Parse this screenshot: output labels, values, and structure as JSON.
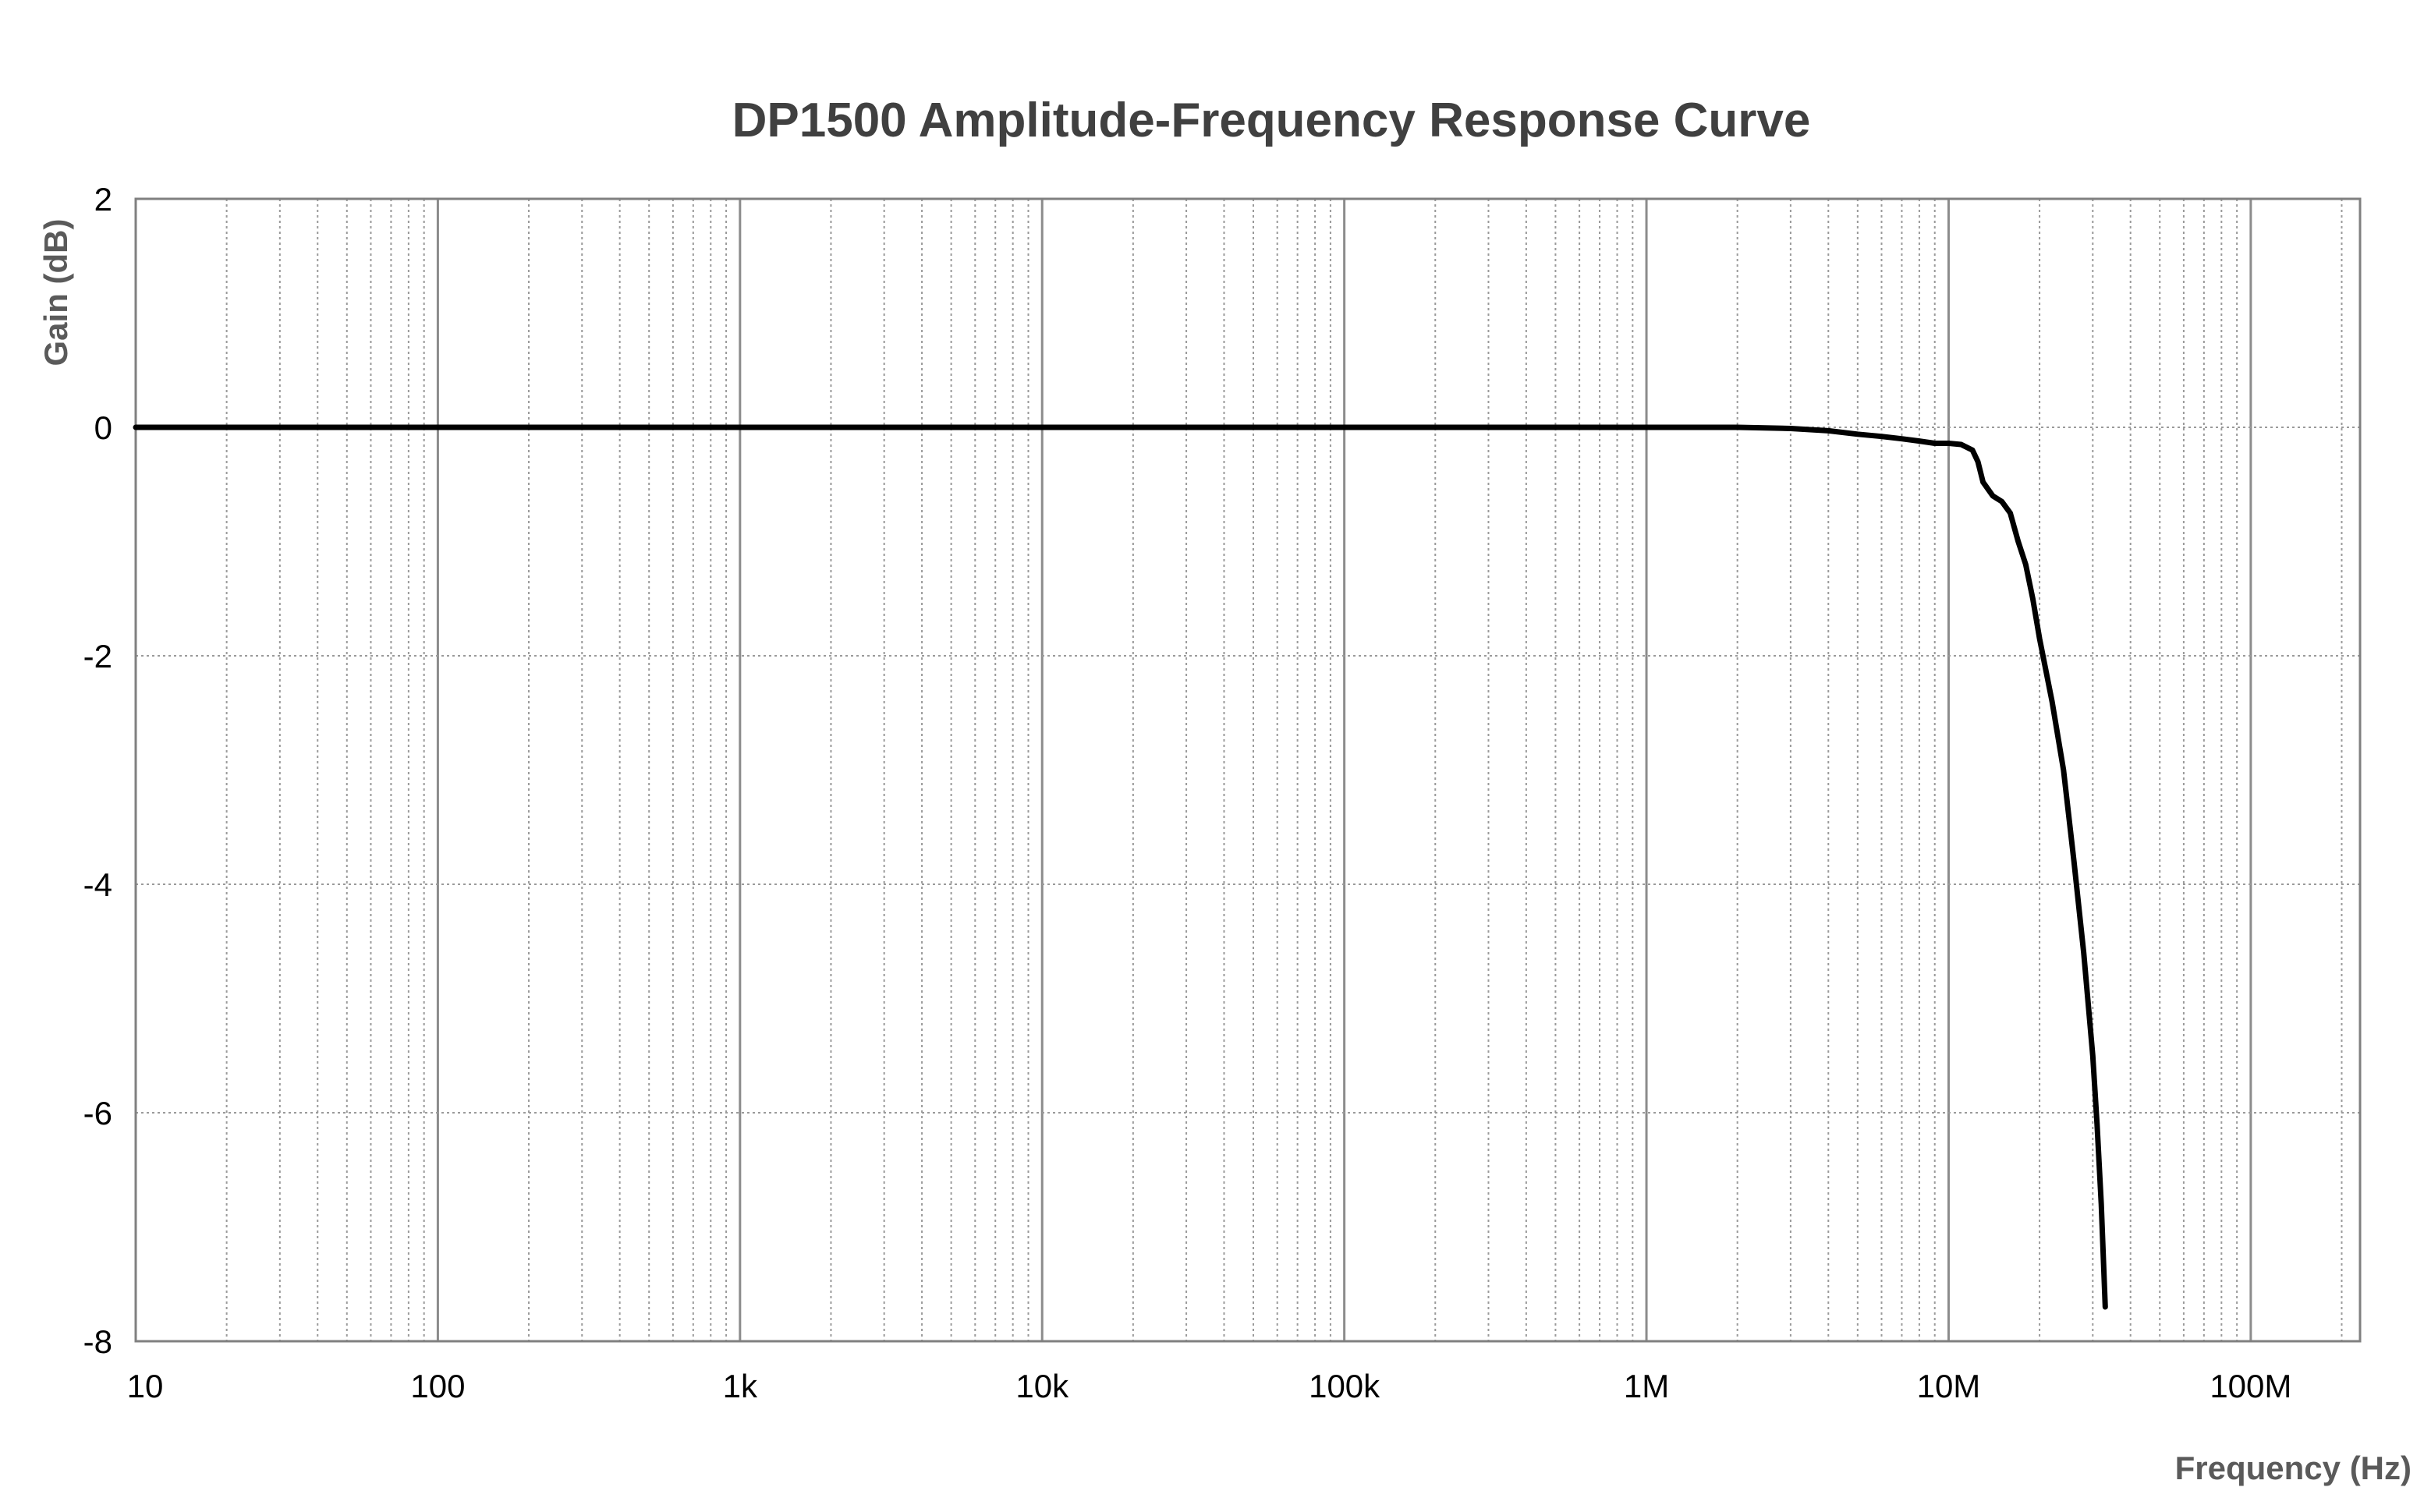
{
  "chart_data": {
    "type": "line",
    "title": "DP1500 Amplitude-Frequency Response Curve",
    "xlabel": "Frequency (Hz)",
    "ylabel": "Gain (dB)",
    "x_scale": "log",
    "xlim": [
      10,
      230000000
    ],
    "ylim": [
      -8,
      2
    ],
    "grid": true,
    "x_ticks": [
      {
        "value": 10,
        "label": "10"
      },
      {
        "value": 100,
        "label": "100"
      },
      {
        "value": 1000,
        "label": "1k"
      },
      {
        "value": 10000,
        "label": "10k"
      },
      {
        "value": 100000,
        "label": "100k"
      },
      {
        "value": 1000000,
        "label": "1M"
      },
      {
        "value": 10000000,
        "label": "10M"
      },
      {
        "value": 100000000,
        "label": "100M"
      }
    ],
    "y_ticks": [
      2,
      0,
      -2,
      -4,
      -6,
      -8
    ],
    "series": [
      {
        "color": "#000000",
        "x": [
          10,
          100,
          1000,
          10000,
          100000,
          1000000,
          2000000,
          3000000,
          4000000,
          5000000,
          6000000,
          7000000,
          8000000,
          9000000,
          10000000,
          11000000,
          12000000,
          12500000,
          13000000,
          14000000,
          15000000,
          16000000,
          17000000,
          18000000,
          19000000,
          20000000,
          22000000,
          24000000,
          26000000,
          28000000,
          30000000,
          31000000,
          32000000,
          33000000
        ],
        "y": [
          0,
          0,
          0,
          0,
          0,
          0,
          0,
          -0.01,
          -0.03,
          -0.06,
          -0.08,
          -0.1,
          -0.12,
          -0.14,
          -0.14,
          -0.15,
          -0.2,
          -0.3,
          -0.48,
          -0.6,
          -0.65,
          -0.75,
          -1.0,
          -1.2,
          -1.5,
          -1.85,
          -2.4,
          -3.0,
          -3.8,
          -4.6,
          -5.5,
          -6.1,
          -6.8,
          -7.7
        ]
      }
    ]
  }
}
